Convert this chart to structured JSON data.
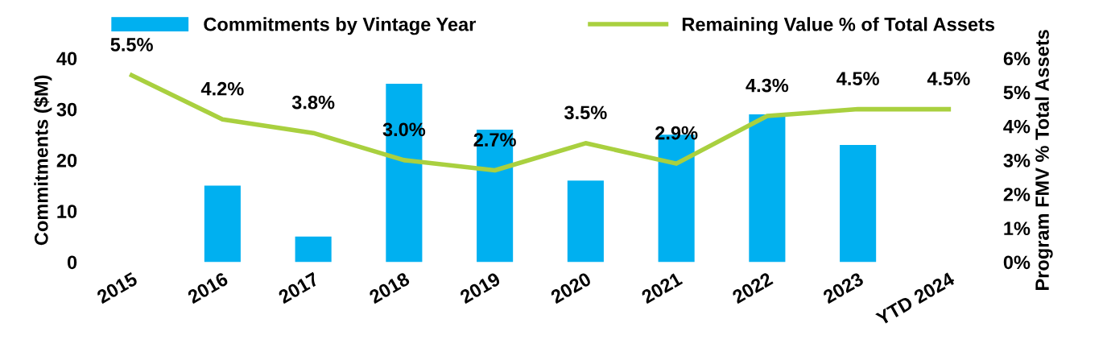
{
  "chart_data": {
    "type": "bar",
    "ylabel": "Commitments ($M)",
    "y2label": "Program FMV % Total Assets",
    "categories": [
      "2015",
      "2016",
      "2017",
      "2018",
      "2019",
      "2020",
      "2021",
      "2022",
      "2023",
      "YTD 2024"
    ],
    "series": [
      {
        "name": "Commitments by Vintage Year",
        "color": "#00b0f0",
        "values": [
          0,
          15,
          5,
          35,
          26,
          16,
          25,
          29,
          23,
          0
        ]
      },
      {
        "name": "Remaining Value % of Total Assets",
        "type": "line",
        "axis": "y2",
        "color": "#a9d03f",
        "marker": "none",
        "values": [
          5.5,
          4.2,
          3.8,
          3.0,
          2.7,
          3.5,
          2.9,
          4.3,
          4.5,
          4.5
        ],
        "value_labels": [
          "5.5%",
          "4.2%",
          "3.8%",
          "3.0%",
          "2.7%",
          "3.5%",
          "2.9%",
          "4.3%",
          "4.5%",
          "4.5%"
        ]
      }
    ],
    "ylim": [
      0,
      40
    ],
    "yticks": [
      0,
      10,
      20,
      30,
      40
    ],
    "y2lim": [
      0,
      6
    ],
    "y2ticks": [
      {
        "value": 0,
        "label": "0%"
      },
      {
        "value": 1,
        "label": "1%"
      },
      {
        "value": 2,
        "label": "2%"
      },
      {
        "value": 3,
        "label": "3%"
      },
      {
        "value": 4,
        "label": "4%"
      },
      {
        "value": 5,
        "label": "5%"
      },
      {
        "value": 6,
        "label": "6%"
      }
    ],
    "grid": false,
    "legend": "top"
  }
}
